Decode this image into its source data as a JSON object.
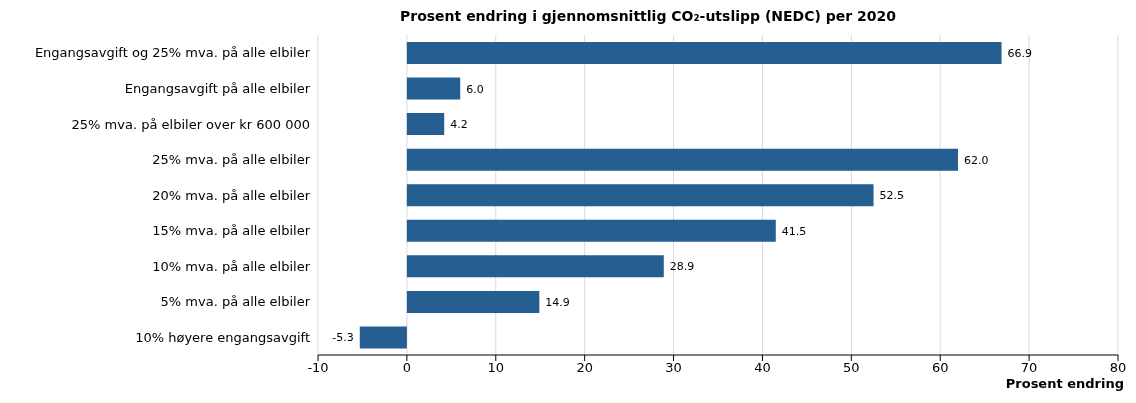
{
  "chart_data": {
    "type": "bar",
    "orientation": "horizontal",
    "title": "Prosent endring i gjennomsnittlig CO₂-utslipp (NEDC) per 2020",
    "xlabel": "Prosent endring",
    "categories": [
      "Engangsavgift og 25% mva. på alle elbiler",
      "Engangsavgift på alle elbiler",
      "25% mva. på elbiler over kr 600 000",
      "25% mva. på alle elbiler",
      "20% mva. på alle elbiler",
      "15% mva. på alle elbiler",
      "10% mva. på alle elbiler",
      "5% mva. på alle elbiler",
      "10% høyere engangsavgift"
    ],
    "values": [
      66.9,
      6.0,
      4.2,
      62.0,
      52.5,
      41.5,
      28.9,
      14.9,
      -5.3
    ],
    "value_labels": [
      "66.9",
      "6.0",
      "4.2",
      "62.0",
      "52.5",
      "41.5",
      "28.9",
      "14.9",
      "-5.3"
    ],
    "color": "#255e91",
    "xlim": [
      -10,
      80
    ],
    "xticks": [
      -10,
      0,
      10,
      20,
      30,
      40,
      50,
      60,
      70,
      80
    ],
    "grid": "x"
  }
}
